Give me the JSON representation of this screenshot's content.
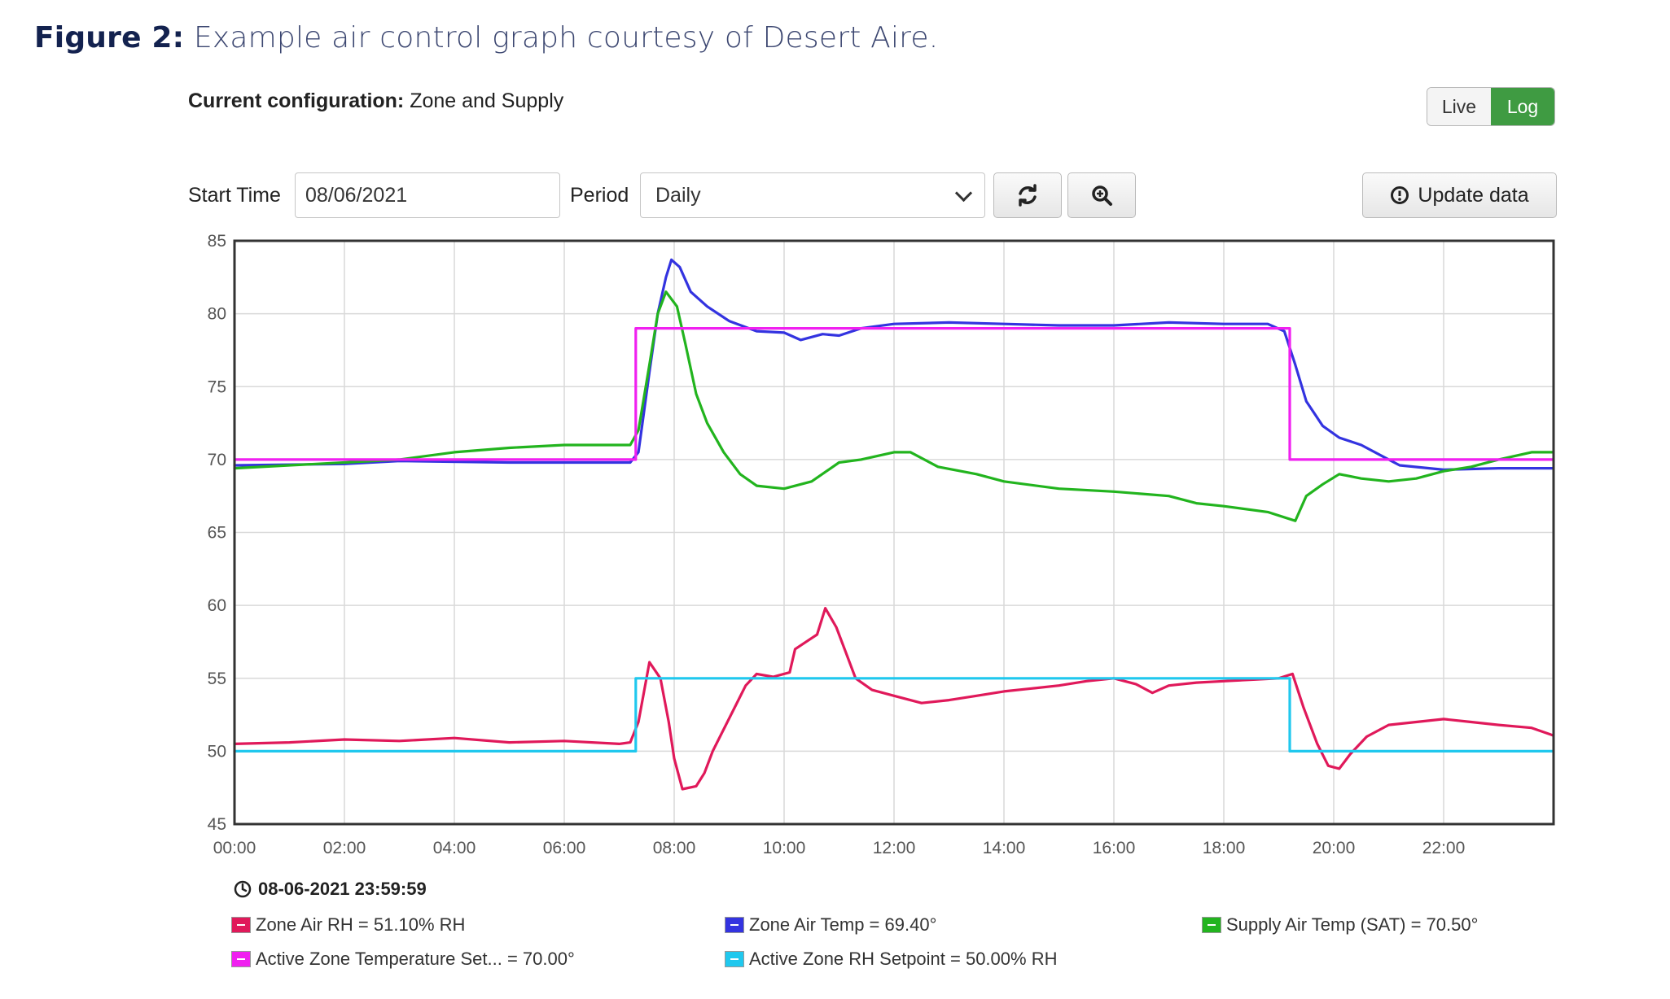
{
  "caption": {
    "figure_label": "Figure 2:",
    "text": "Example air control graph courtesy of Desert Aire."
  },
  "config": {
    "label": "Current configuration:",
    "value": "Zone and Supply"
  },
  "toggle": {
    "live": "Live",
    "log": "Log",
    "active": "Log",
    "active_color": "#3f9b42"
  },
  "controls": {
    "start_time_label": "Start Time",
    "start_time_value": "08/06/2021",
    "period_label": "Period",
    "period_value": "Daily",
    "refresh_icon": "refresh-icon",
    "zoom_icon": "zoom-in-icon",
    "update_label": "Update data",
    "update_icon": "info-icon"
  },
  "legend": {
    "timestamp": "08-06-2021 23:59:59",
    "items": [
      {
        "label": "Zone Air RH = 51.10% RH",
        "color": "#e0195a"
      },
      {
        "label": "Zone Air Temp = 69.40°",
        "color": "#3333e0"
      },
      {
        "label": "Supply Air Temp (SAT) = 70.50°",
        "color": "#22b41e"
      },
      {
        "label": "Active Zone Temperature Set... = 70.00°",
        "color": "#f020f0"
      },
      {
        "label": "Active Zone RH Setpoint = 50.00% RH",
        "color": "#20c8ee"
      }
    ]
  },
  "chart_data": {
    "type": "line",
    "xlim": [
      0,
      24
    ],
    "ylim": [
      45,
      85
    ],
    "x_ticks": [
      "00:00",
      "02:00",
      "04:00",
      "06:00",
      "08:00",
      "10:00",
      "12:00",
      "14:00",
      "16:00",
      "18:00",
      "20:00",
      "22:00"
    ],
    "y_ticks": [
      45,
      50,
      55,
      60,
      65,
      70,
      75,
      80,
      85
    ],
    "grid": true,
    "series": [
      {
        "name": "Zone Air RH",
        "color": "#e0195a",
        "points": [
          [
            0,
            50.5
          ],
          [
            1,
            50.6
          ],
          [
            2,
            50.8
          ],
          [
            3,
            50.7
          ],
          [
            4,
            50.9
          ],
          [
            5,
            50.6
          ],
          [
            6,
            50.7
          ],
          [
            7,
            50.5
          ],
          [
            7.2,
            50.6
          ],
          [
            7.35,
            52
          ],
          [
            7.55,
            56.1
          ],
          [
            7.75,
            55
          ],
          [
            7.9,
            52
          ],
          [
            8.0,
            49.5
          ],
          [
            8.15,
            47.4
          ],
          [
            8.4,
            47.6
          ],
          [
            8.55,
            48.5
          ],
          [
            8.7,
            50
          ],
          [
            8.9,
            51.5
          ],
          [
            9.1,
            53
          ],
          [
            9.3,
            54.5
          ],
          [
            9.5,
            55.3
          ],
          [
            9.8,
            55.1
          ],
          [
            10.1,
            55.4
          ],
          [
            10.2,
            57
          ],
          [
            10.4,
            57.5
          ],
          [
            10.6,
            58
          ],
          [
            10.75,
            59.8
          ],
          [
            10.95,
            58.5
          ],
          [
            11.1,
            57
          ],
          [
            11.3,
            55
          ],
          [
            11.6,
            54.2
          ],
          [
            12,
            53.8
          ],
          [
            12.5,
            53.3
          ],
          [
            13,
            53.5
          ],
          [
            13.5,
            53.8
          ],
          [
            14,
            54.1
          ],
          [
            14.5,
            54.3
          ],
          [
            15,
            54.5
          ],
          [
            15.5,
            54.8
          ],
          [
            16,
            55
          ],
          [
            16.4,
            54.6
          ],
          [
            16.7,
            54
          ],
          [
            17,
            54.5
          ],
          [
            17.5,
            54.7
          ],
          [
            18,
            54.8
          ],
          [
            18.5,
            54.9
          ],
          [
            19,
            55
          ],
          [
            19.25,
            55.3
          ],
          [
            19.45,
            53
          ],
          [
            19.7,
            50.5
          ],
          [
            19.9,
            49
          ],
          [
            20.1,
            48.8
          ],
          [
            20.3,
            49.8
          ],
          [
            20.6,
            51
          ],
          [
            21,
            51.8
          ],
          [
            21.5,
            52
          ],
          [
            22,
            52.2
          ],
          [
            22.5,
            52
          ],
          [
            23,
            51.8
          ],
          [
            23.6,
            51.6
          ],
          [
            23.98,
            51.1
          ]
        ]
      },
      {
        "name": "Zone Air Temp",
        "color": "#3333e0",
        "points": [
          [
            0,
            69.6
          ],
          [
            2,
            69.7
          ],
          [
            3,
            69.9
          ],
          [
            5,
            69.8
          ],
          [
            6,
            69.8
          ],
          [
            7.2,
            69.8
          ],
          [
            7.35,
            70.5
          ],
          [
            7.55,
            76
          ],
          [
            7.7,
            80
          ],
          [
            7.85,
            82.5
          ],
          [
            7.95,
            83.7
          ],
          [
            8.1,
            83.2
          ],
          [
            8.3,
            81.5
          ],
          [
            8.6,
            80.5
          ],
          [
            9.0,
            79.5
          ],
          [
            9.5,
            78.8
          ],
          [
            10.0,
            78.7
          ],
          [
            10.3,
            78.2
          ],
          [
            10.7,
            78.6
          ],
          [
            11.0,
            78.5
          ],
          [
            11.4,
            79
          ],
          [
            12,
            79.3
          ],
          [
            13,
            79.4
          ],
          [
            14,
            79.3
          ],
          [
            15,
            79.2
          ],
          [
            16,
            79.2
          ],
          [
            17,
            79.4
          ],
          [
            18,
            79.3
          ],
          [
            18.8,
            79.3
          ],
          [
            19.1,
            78.8
          ],
          [
            19.3,
            76.5
          ],
          [
            19.5,
            74
          ],
          [
            19.8,
            72.3
          ],
          [
            20.1,
            71.5
          ],
          [
            20.5,
            71
          ],
          [
            20.9,
            70.2
          ],
          [
            21.2,
            69.6
          ],
          [
            22,
            69.3
          ],
          [
            23,
            69.4
          ],
          [
            23.98,
            69.4
          ]
        ]
      },
      {
        "name": "Supply Air Temp (SAT)",
        "color": "#22b41e",
        "points": [
          [
            0,
            69.4
          ],
          [
            1,
            69.6
          ],
          [
            2,
            69.8
          ],
          [
            3,
            70
          ],
          [
            4,
            70.5
          ],
          [
            5,
            70.8
          ],
          [
            6,
            71
          ],
          [
            7.2,
            71
          ],
          [
            7.35,
            72
          ],
          [
            7.55,
            76.5
          ],
          [
            7.7,
            80
          ],
          [
            7.85,
            81.5
          ],
          [
            8.05,
            80.5
          ],
          [
            8.2,
            78
          ],
          [
            8.4,
            74.5
          ],
          [
            8.6,
            72.5
          ],
          [
            8.9,
            70.5
          ],
          [
            9.2,
            69
          ],
          [
            9.5,
            68.2
          ],
          [
            10.0,
            68
          ],
          [
            10.5,
            68.5
          ],
          [
            11,
            69.8
          ],
          [
            11.4,
            70
          ],
          [
            12.0,
            70.5
          ],
          [
            12.3,
            70.5
          ],
          [
            12.8,
            69.5
          ],
          [
            13.5,
            69
          ],
          [
            14.0,
            68.5
          ],
          [
            15.0,
            68
          ],
          [
            16.0,
            67.8
          ],
          [
            17.0,
            67.5
          ],
          [
            17.5,
            67
          ],
          [
            18.0,
            66.8
          ],
          [
            18.8,
            66.4
          ],
          [
            19.3,
            65.8
          ],
          [
            19.5,
            67.5
          ],
          [
            19.8,
            68.3
          ],
          [
            20.1,
            69
          ],
          [
            20.5,
            68.7
          ],
          [
            21,
            68.5
          ],
          [
            21.5,
            68.7
          ],
          [
            22,
            69.2
          ],
          [
            22.5,
            69.5
          ],
          [
            23,
            70
          ],
          [
            23.6,
            70.5
          ],
          [
            23.98,
            70.5
          ]
        ]
      },
      {
        "name": "Active Zone Temperature Set...",
        "color": "#f020f0",
        "points": [
          [
            0,
            70
          ],
          [
            7.3,
            70
          ],
          [
            7.3,
            79
          ],
          [
            19.2,
            79
          ],
          [
            19.2,
            70
          ],
          [
            23.98,
            70
          ]
        ]
      },
      {
        "name": "Active Zone RH Setpoint",
        "color": "#20c8ee",
        "points": [
          [
            0,
            50
          ],
          [
            7.3,
            50
          ],
          [
            7.3,
            55
          ],
          [
            19.2,
            55
          ],
          [
            19.2,
            50
          ],
          [
            23.98,
            50
          ]
        ]
      }
    ]
  }
}
